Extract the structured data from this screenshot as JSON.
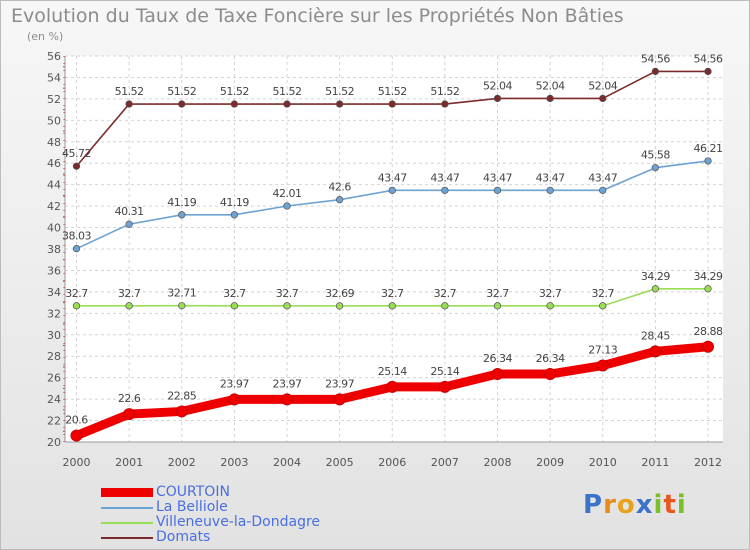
{
  "title": "Evolution du Taux de Taxe Foncière sur les Propriétés Non Bâties",
  "subtitle": "(en %)",
  "logo": {
    "letters": [
      "P",
      "r",
      "o",
      "x",
      "i",
      "t",
      "i"
    ],
    "colors": [
      "#3a73c9",
      "#e98b1d",
      "#e8a21d",
      "#3a73c9",
      "#7bbf2a",
      "#e8571d",
      "#7bbf2a"
    ]
  },
  "chart_data": {
    "type": "line",
    "title": "Evolution du Taux de Taxe Foncière sur les Propriétés Non Bâties",
    "ylabel": "(en %)",
    "xlabel": "",
    "x": [
      "2000",
      "2001",
      "2002",
      "2003",
      "2004",
      "2005",
      "2006",
      "2007",
      "2008",
      "2009",
      "2010",
      "2011",
      "2012"
    ],
    "ylim": [
      20,
      56
    ],
    "ytick_step": 2,
    "yticks": [
      "20",
      "22",
      "24",
      "26",
      "28",
      "30",
      "32",
      "34",
      "36",
      "38",
      "40",
      "42",
      "44",
      "46",
      "48",
      "50",
      "52",
      "54",
      "56"
    ],
    "grid": true,
    "legend_position": "bottom-left",
    "series": [
      {
        "name": "COURTOIN",
        "color": "#ee0000",
        "values": [
          20.6,
          22.6,
          22.85,
          23.97,
          23.97,
          23.97,
          25.14,
          25.14,
          26.34,
          26.34,
          27.13,
          28.45,
          28.88
        ],
        "labels": [
          "20.6",
          "22.6",
          "22.85",
          "23.97",
          "23.97",
          "23.97",
          "25.14",
          "25.14",
          "26.34",
          "26.34",
          "27.13",
          "28.45",
          "28.88"
        ]
      },
      {
        "name": "La Belliole",
        "color": "#6da2d3",
        "values": [
          38.03,
          40.31,
          41.19,
          41.19,
          42.01,
          42.6,
          43.47,
          43.47,
          43.47,
          43.47,
          43.47,
          45.58,
          46.21
        ],
        "labels": [
          "38.03",
          "40.31",
          "41.19",
          "41.19",
          "42.01",
          "42.6",
          "43.47",
          "43.47",
          "43.47",
          "43.47",
          "43.47",
          "45.58",
          "46.21"
        ]
      },
      {
        "name": "Villeneuve-la-Dondagre",
        "color": "#99dd55",
        "values": [
          32.7,
          32.7,
          32.71,
          32.7,
          32.7,
          32.69,
          32.7,
          32.7,
          32.7,
          32.7,
          32.7,
          34.29,
          34.29
        ],
        "labels": [
          "32.7",
          "32.7",
          "32.71",
          "32.7",
          "32.7",
          "32.69",
          "32.7",
          "32.7",
          "32.7",
          "32.7",
          "32.7",
          "34.29",
          "34.29"
        ]
      },
      {
        "name": "Domats",
        "color": "#7b2b2b",
        "values": [
          45.72,
          51.52,
          51.52,
          51.52,
          51.52,
          51.52,
          51.52,
          51.52,
          52.04,
          52.04,
          52.04,
          54.56,
          54.56
        ],
        "labels": [
          "45.72",
          "51.52",
          "51.52",
          "51.52",
          "51.52",
          "51.52",
          "51.52",
          "51.52",
          "52.04",
          "52.04",
          "52.04",
          "54.56",
          "54.56"
        ]
      }
    ]
  }
}
